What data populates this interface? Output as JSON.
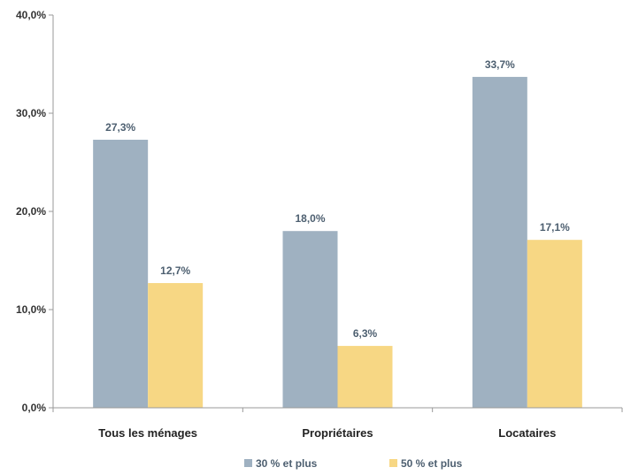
{
  "chart_data": {
    "type": "bar",
    "categories": [
      "Tous les ménages",
      "Propriétaires",
      "Locataires"
    ],
    "series": [
      {
        "name": "30 % et plus",
        "values": [
          27.3,
          18.0,
          33.7
        ],
        "labels": [
          "27,3%",
          "18,0%",
          "33,7%"
        ],
        "color": "#9fb1c1"
      },
      {
        "name": "50 % et plus",
        "values": [
          12.7,
          6.3,
          17.1
        ],
        "labels": [
          "12,7%",
          "6,3%",
          "17,1%"
        ],
        "color": "#f7d784"
      }
    ],
    "yticks": [
      0,
      10,
      20,
      30,
      40
    ],
    "ytick_labels": [
      "0,0%",
      "10,0%",
      "20,0%",
      "30,0%",
      "40,0%"
    ],
    "ylim": [
      0,
      40
    ],
    "title": "",
    "xlabel": "",
    "ylabel": "",
    "grid": false,
    "legend_position": "bottom"
  }
}
